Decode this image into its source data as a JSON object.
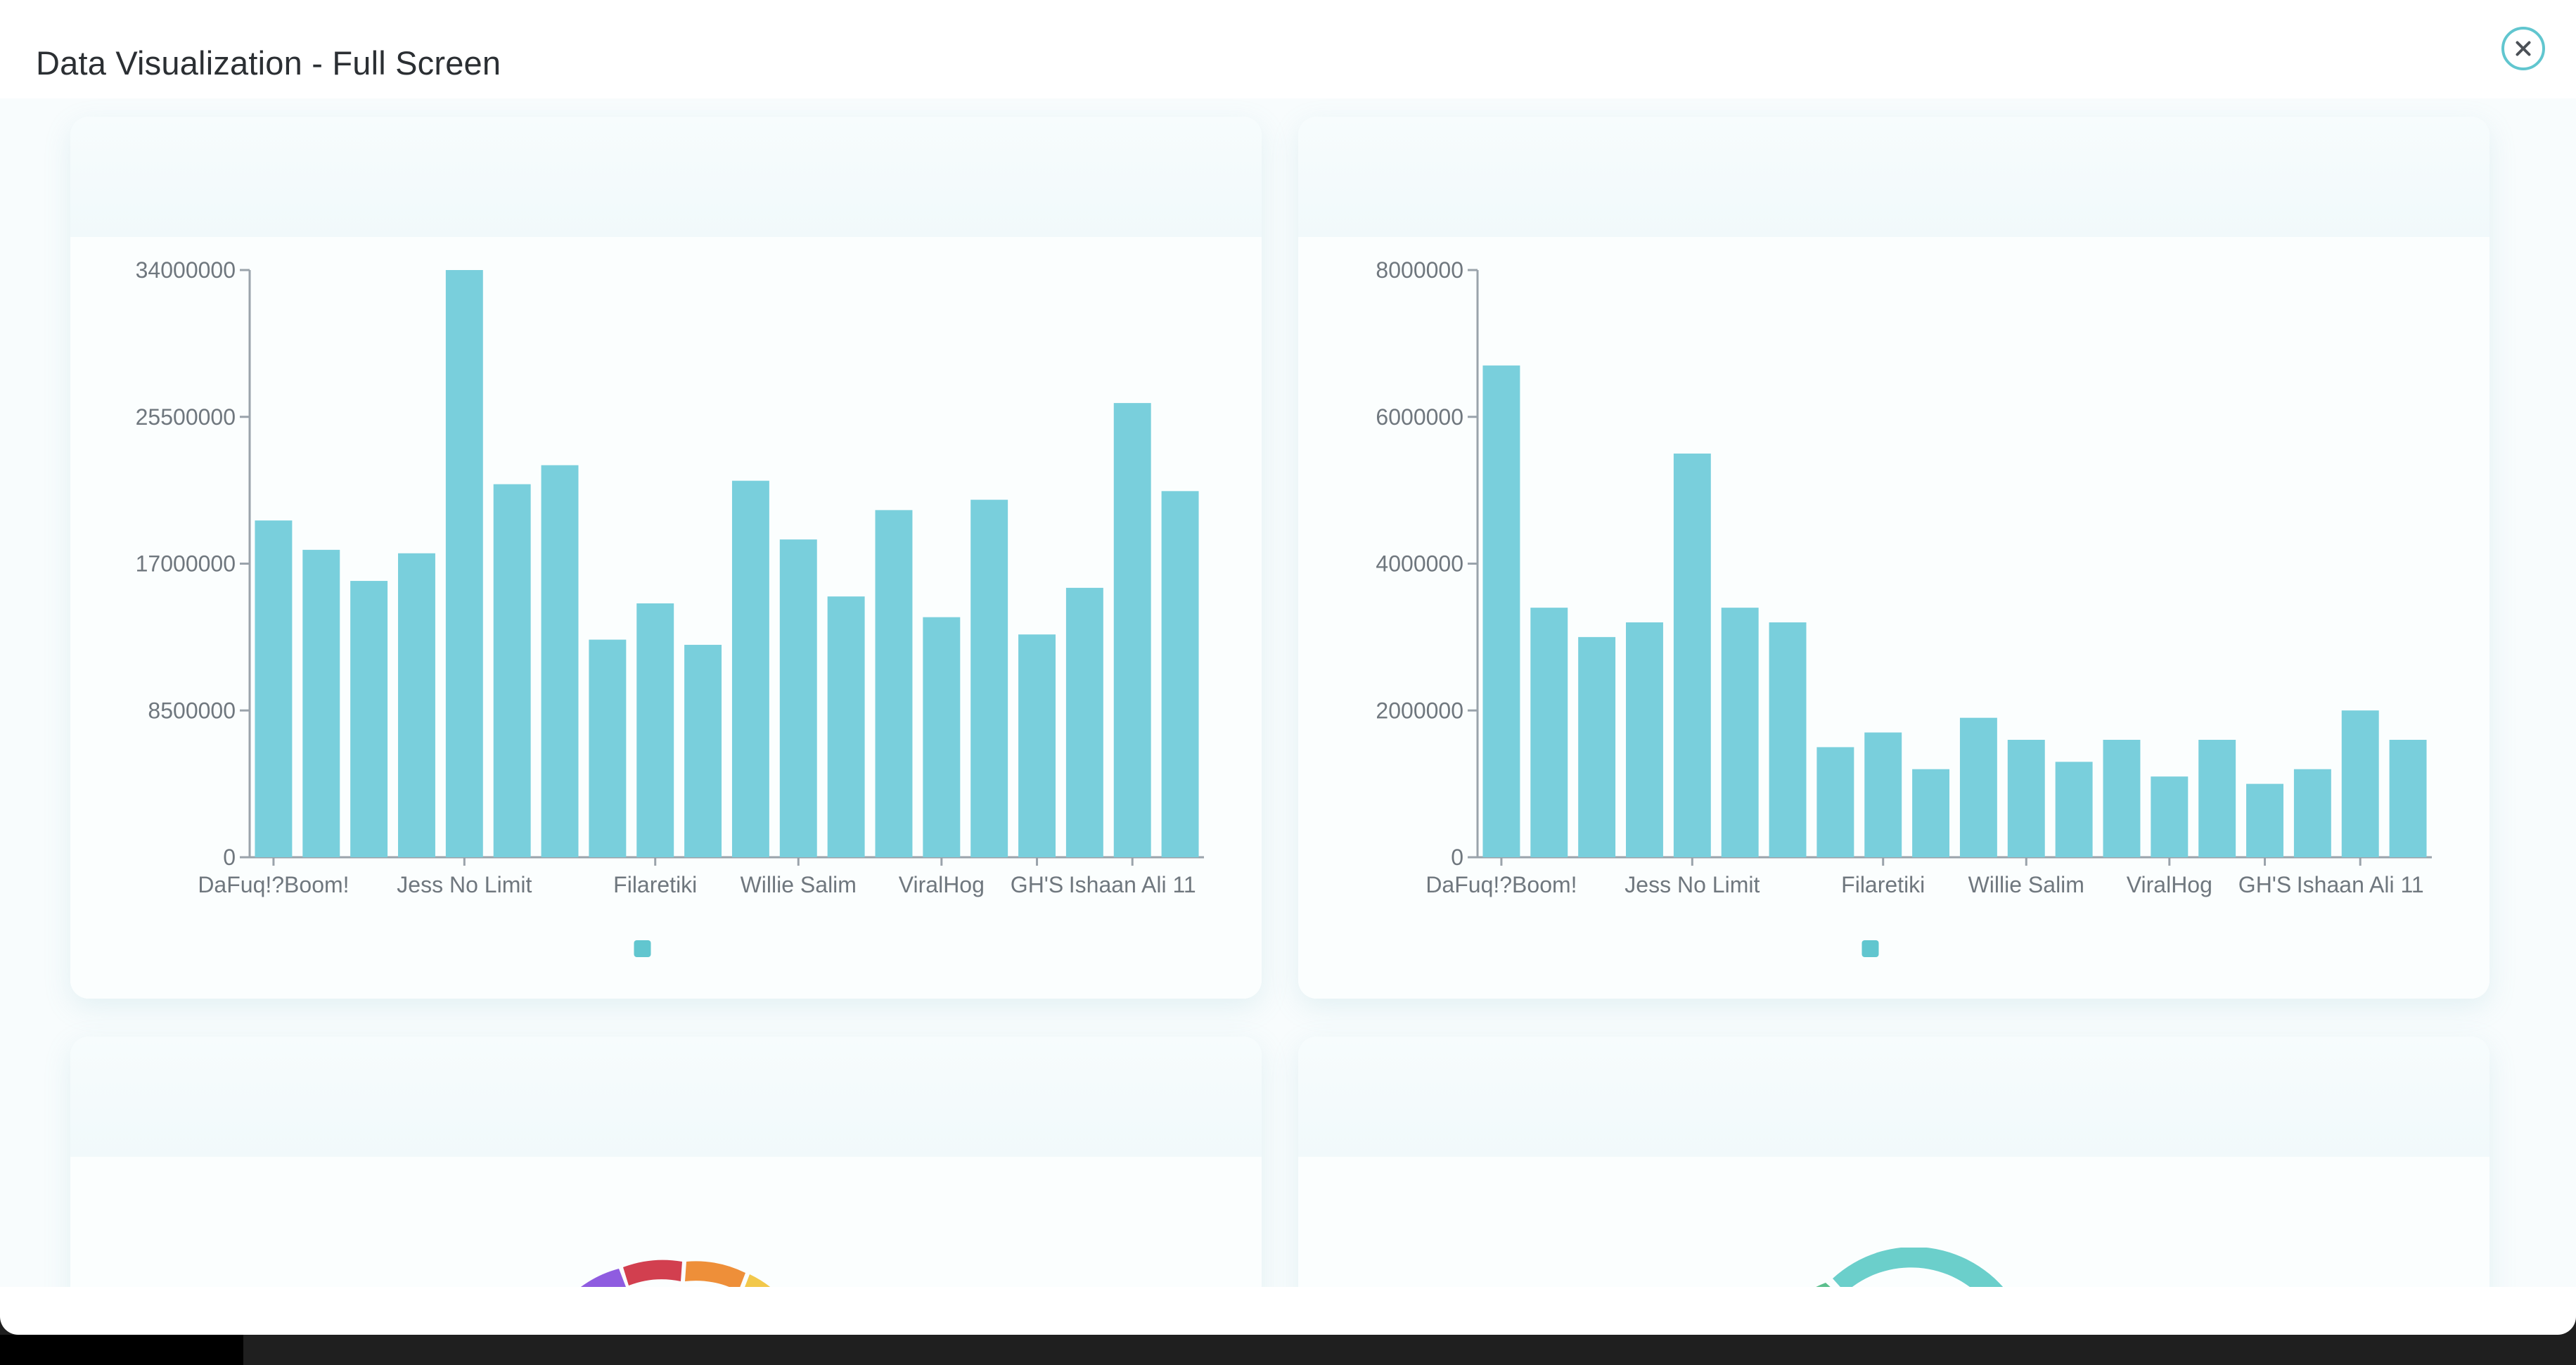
{
  "modal": {
    "title": "Data Visualization - Full Screen"
  },
  "icons": {
    "close": "close-icon"
  },
  "colors": {
    "bar": "#79cfdc",
    "accent": "#61c6cf",
    "axis": "#9aa3ab",
    "label": "#6f777e"
  },
  "chart_data": [
    {
      "type": "bar",
      "title": "",
      "xlabel": "",
      "ylabel": "",
      "ylim": [
        0,
        34000000
      ],
      "yticks": [
        "0",
        "8500000",
        "17000000",
        "25500000",
        "34000000"
      ],
      "xtick_labels": [
        "DaFuq!?Boom!",
        "Jess No Limit",
        "Filaretiki",
        "Willie Salim",
        "ViralHog",
        "GH'S",
        "Ishaan Ali 11"
      ],
      "xtick_indices": [
        0,
        4,
        8,
        11,
        14,
        16,
        18
      ],
      "values": [
        19500000,
        17800000,
        16000000,
        17600000,
        34000000,
        21600000,
        22700000,
        12600000,
        14700000,
        12300000,
        21800000,
        18400000,
        15100000,
        20100000,
        13900000,
        20700000,
        12900000,
        15600000,
        26300000,
        21200000
      ],
      "legend": "bottom",
      "grid": false
    },
    {
      "type": "bar",
      "title": "",
      "xlabel": "",
      "ylabel": "",
      "ylim": [
        0,
        8000000
      ],
      "yticks": [
        "0",
        "2000000",
        "4000000",
        "6000000",
        "8000000"
      ],
      "xtick_labels": [
        "DaFuq!?Boom!",
        "Jess No Limit",
        "Filaretiki",
        "Willie Salim",
        "ViralHog",
        "GH'S",
        "Ishaan Ali 11"
      ],
      "xtick_indices": [
        0,
        4,
        8,
        11,
        14,
        16,
        18
      ],
      "values": [
        6700000,
        3400000,
        3000000,
        3200000,
        5500000,
        3400000,
        3200000,
        1500000,
        1700000,
        1200000,
        1900000,
        1600000,
        1300000,
        1600000,
        1100000,
        1600000,
        1000000,
        1200000,
        2000000,
        1600000
      ],
      "legend": "bottom",
      "grid": false
    }
  ]
}
